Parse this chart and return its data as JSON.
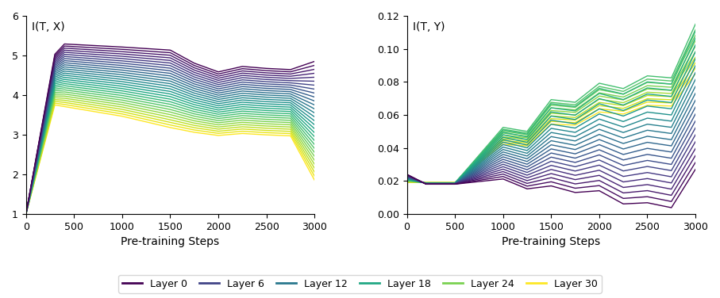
{
  "title_left": "I(T, X)",
  "title_right": "I(T, Y)",
  "xlabel": "Pre-training Steps",
  "xlim": [
    0,
    3000
  ],
  "ylim_left": [
    1,
    6
  ],
  "ylim_right": [
    0.0,
    0.12
  ],
  "yticks_left": [
    1,
    2,
    3,
    4,
    5,
    6
  ],
  "yticks_right": [
    0.0,
    0.02,
    0.04,
    0.06,
    0.08,
    0.1,
    0.12
  ],
  "xticks": [
    0,
    500,
    1000,
    1500,
    2000,
    2500,
    3000
  ],
  "num_layers": 31,
  "legend_layers": [
    0,
    6,
    12,
    18,
    24,
    30
  ],
  "legend_labels": [
    "Layer 0",
    "Layer 6",
    "Layer 12",
    "Layer 18",
    "Layer 24",
    "Layer 30"
  ],
  "colormap": "viridis",
  "steps": [
    0,
    100,
    200,
    300,
    400,
    500,
    700,
    1000,
    1250,
    1500,
    1750,
    2000,
    2250,
    2500,
    2750,
    3000
  ],
  "figsize": [
    9.07,
    3.76
  ],
  "dpi": 100
}
